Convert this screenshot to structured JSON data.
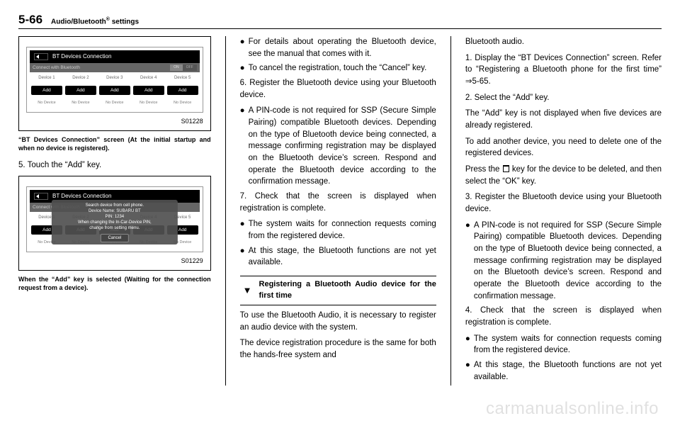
{
  "header": {
    "pageNum": "5-66",
    "title_a": "Audio/Bluetooth",
    "title_b": " settings"
  },
  "fig1": {
    "barTitle": "BT Devices Connection",
    "sub": "Connect with Bluetooth",
    "on": "ON",
    "off": "OFF",
    "devices": [
      "Device 1",
      "Device 2",
      "Device 3",
      "Device 4",
      "Device 5"
    ],
    "add": "Add",
    "nodev": "No Device",
    "id": "S01228",
    "caption": "“BT Devices Connection” screen (At the initial startup and when no device is registered)."
  },
  "c1": {
    "step5": "5.  Touch the “Add” key."
  },
  "fig2": {
    "barTitle": "BT Devices Connection",
    "sub": "Connect with Bluetooth",
    "dialog_l1": "Search device from cell phone.",
    "dialog_l2": "Device Name: SUBARU BT",
    "dialog_l3": "PIN: 1234",
    "dialog_l4": "When changing the In-Car-Device PIN,",
    "dialog_l5": "change from setting menu.",
    "cancel": "Cancel",
    "id": "S01229",
    "caption": "When the “Add” key is selected (Waiting for the connection request from a device)."
  },
  "c2": {
    "b1": "For details about operating the Blue­tooth device, see the manual that comes with it.",
    "b2": "To cancel the registration, touch the “Cancel” key.",
    "s6": "6.  Register the Bluetooth device using your Bluetooth device.",
    "b3": "A PIN-code is not required for SSP (Secure Simple Pairing) compatible Bluetooth devices. Depending on the type of Bluetooth device being con­nected, a message confirming regis­tration may be displayed on the Blue­tooth device’s screen. Respond and operate the Bluetooth device accord­ing to the confirmation message.",
    "s7": "7.  Check that the screen is displayed when registration is complete.",
    "b4": "The system waits for connection requests coming from the registered device.",
    "b5": "At this stage, the Bluetooth func­tions are not yet available.",
    "subhead": "Registering a Bluetooth Audio de­vice for the first time",
    "p1": "To use the Bluetooth Audio, it is necessary to register an audio device with the system.",
    "p2": "The device registration procedure is the same for both the hands-free system and"
  },
  "c3": {
    "p0": "Bluetooth audio.",
    "s1": "1.  Display the “BT Devices Connection” screen. Refer to “Registering a Bluetooth phone for the first time” ⇒5-65.",
    "s2": "2.  Select the “Add” key.",
    "p1": "The “Add” key is not displayed when five devices are already registered.",
    "p2": "To add another device, you need to delete one of the registered devices.",
    "p3a": "Press the ",
    "p3b": " key for the device to be deleted, and then select the “OK” key.",
    "s3": "3.  Register the Bluetooth device using your Bluetooth device.",
    "b1": "A PIN-code is not required for SSP (Secure Simple Pairing) compatible Bluetooth devices. Depending on the type of Bluetooth device being con­nected, a message confirming regis­tration may be displayed on the Blue­tooth device’s screen. Respond and operate the Bluetooth device accord­ing to the confirmation message.",
    "s4": "4.  Check that the screen is displayed when registration is complete.",
    "b2": "The system waits for connection requests coming from the registered device.",
    "b3": "At this stage, the Bluetooth func­tions are not yet available."
  },
  "watermark": "carmanualsonline.info"
}
